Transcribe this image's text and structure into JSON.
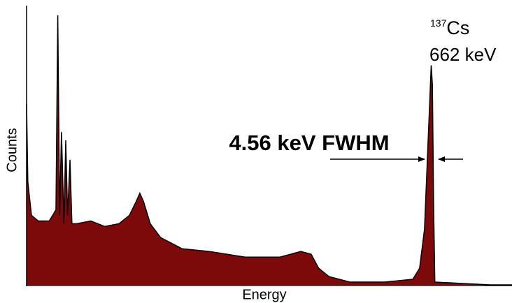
{
  "chart_data": {
    "type": "area",
    "x_label": "Energy",
    "y_label": "Counts",
    "annotation": "4.56 keV FWHM",
    "peak_label": {
      "mass_number": "137",
      "element": "Cs",
      "energy": "662 keV"
    },
    "x": [
      0,
      2,
      8,
      19,
      37,
      48,
      51,
      54,
      57,
      61,
      64,
      67,
      71,
      74,
      82,
      105,
      128,
      151,
      168,
      179,
      185,
      191,
      202,
      219,
      254,
      299,
      357,
      414,
      448,
      465,
      477,
      494,
      528,
      585,
      631,
      642,
      650,
      656,
      661,
      663,
      665,
      667,
      757,
      793
    ],
    "series": [
      {
        "color": "#7d0a0a",
        "values": [
          65,
          37,
          25,
          23,
          23,
          27,
          97,
          25,
          55,
          22,
          52,
          25,
          45,
          22,
          22,
          23,
          21,
          22,
          25,
          30,
          33,
          30,
          22,
          17,
          13,
          12,
          10,
          10,
          12,
          11,
          6,
          3,
          1,
          1,
          2,
          6,
          20,
          52,
          79,
          72,
          27,
          1,
          0,
          0
        ]
      }
    ],
    "xlim": [
      0,
      793
    ],
    "ylim": [
      0,
      100
    ]
  }
}
